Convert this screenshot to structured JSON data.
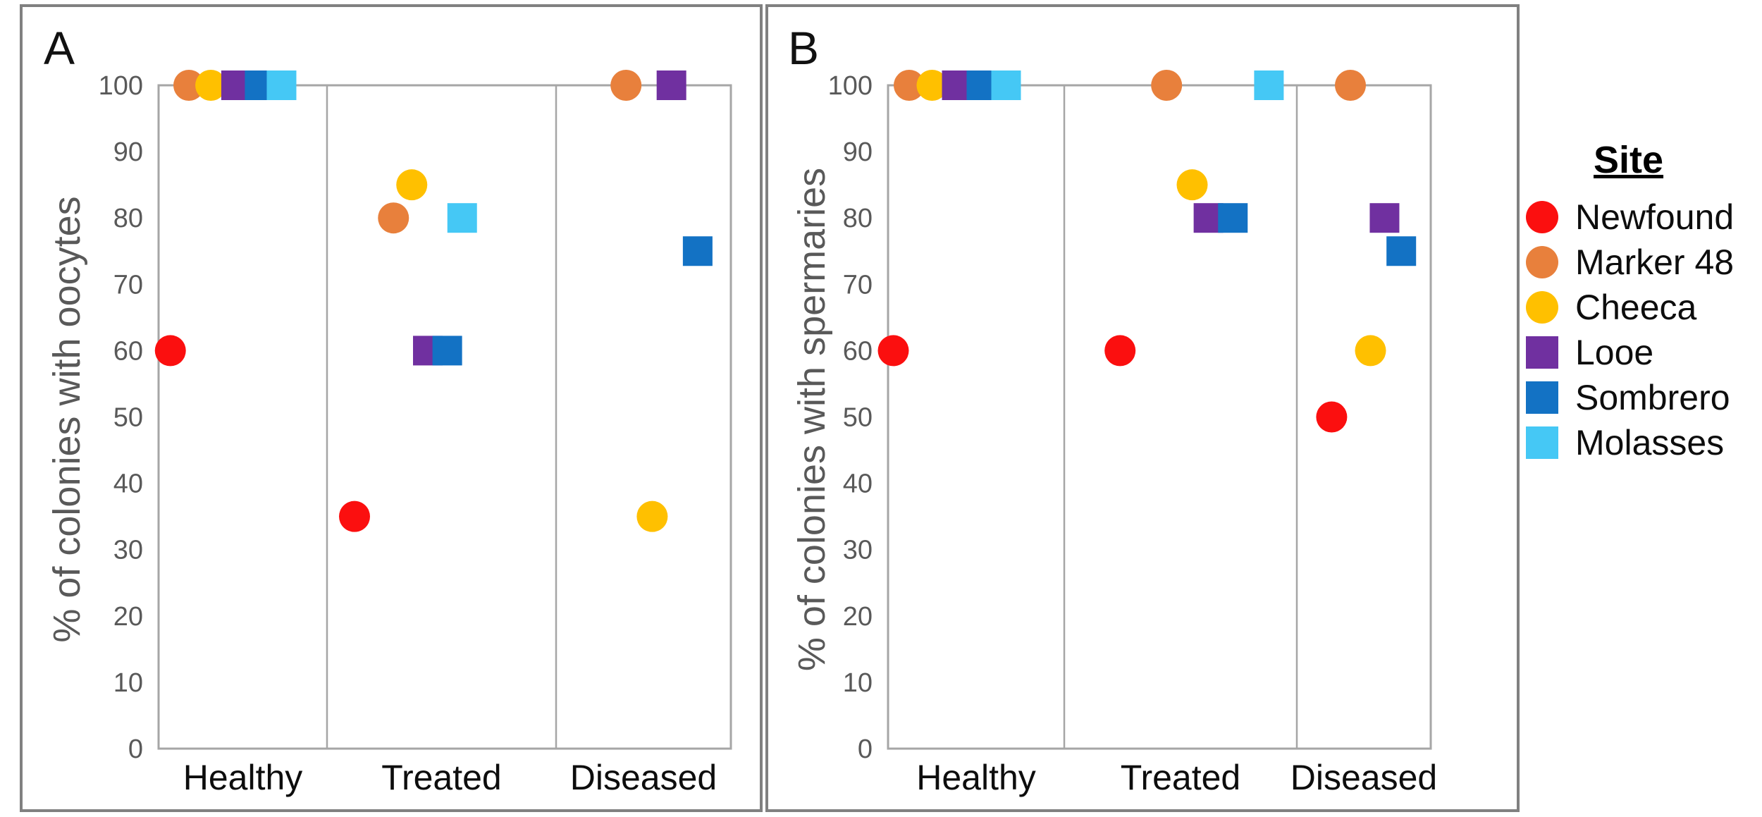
{
  "figure": {
    "colors": {
      "axis_text": "#595959",
      "plot_frame": "#a6a6a6",
      "panel_border": "#808080",
      "category_text": "#0d0d0d"
    }
  },
  "sites": {
    "Newfound": {
      "marker": "circle",
      "color": "#fb0f0f"
    },
    "Marker 48": {
      "marker": "circle",
      "color": "#e8803c"
    },
    "Cheeca": {
      "marker": "circle",
      "color": "#ffc000"
    },
    "Looe": {
      "marker": "square",
      "color": "#7030a0"
    },
    "Sombrero": {
      "marker": "square",
      "color": "#1372c4"
    },
    "Molasses": {
      "marker": "square",
      "color": "#45c8f5"
    }
  },
  "legend": {
    "title": "Site",
    "items": [
      {
        "label": "Newfound",
        "marker": "circle",
        "color": "#fb0f0f"
      },
      {
        "label": "Marker 48",
        "marker": "circle",
        "color": "#e8803c"
      },
      {
        "label": "Cheeca",
        "marker": "circle",
        "color": "#ffc000"
      },
      {
        "label": "Looe",
        "marker": "square",
        "color": "#7030a0"
      },
      {
        "label": "Sombrero",
        "marker": "square",
        "color": "#1372c4"
      },
      {
        "label": "Molasses",
        "marker": "square",
        "color": "#45c8f5"
      }
    ]
  },
  "chart_data": [
    {
      "type": "scatter",
      "panel_letter": "A",
      "ylabel": "% of colonies with oocytes",
      "xlabel": "",
      "categories": [
        "Healthy",
        "Treated",
        "Diseased"
      ],
      "ylim": [
        0,
        100
      ],
      "y_ticks": [
        0,
        10,
        20,
        30,
        40,
        50,
        60,
        70,
        80,
        90,
        100
      ],
      "grid": false,
      "legend_position": "outside-right",
      "points": [
        {
          "site": "Newfound",
          "category": "Healthy",
          "value": 60,
          "x_frac": 0.07
        },
        {
          "site": "Marker 48",
          "category": "Healthy",
          "value": 100,
          "x_frac": 0.18
        },
        {
          "site": "Cheeca",
          "category": "Healthy",
          "value": 100,
          "x_frac": 0.31
        },
        {
          "site": "Looe",
          "category": "Healthy",
          "value": 100,
          "x_frac": 0.46
        },
        {
          "site": "Sombrero",
          "category": "Healthy",
          "value": 100,
          "x_frac": 0.6
        },
        {
          "site": "Molasses",
          "category": "Healthy",
          "value": 100,
          "x_frac": 0.73
        },
        {
          "site": "Newfound",
          "category": "Treated",
          "value": 35,
          "x_frac": 0.12
        },
        {
          "site": "Marker 48",
          "category": "Treated",
          "value": 80,
          "x_frac": 0.29
        },
        {
          "site": "Cheeca",
          "category": "Treated",
          "value": 85,
          "x_frac": 0.37
        },
        {
          "site": "Looe",
          "category": "Treated",
          "value": 60,
          "x_frac": 0.44
        },
        {
          "site": "Sombrero",
          "category": "Treated",
          "value": 60,
          "x_frac": 0.525
        },
        {
          "site": "Molasses",
          "category": "Treated",
          "value": 80,
          "x_frac": 0.59
        },
        {
          "site": "Marker 48",
          "category": "Diseased",
          "value": 100,
          "x_frac": 0.4
        },
        {
          "site": "Looe",
          "category": "Diseased",
          "value": 100,
          "x_frac": 0.66
        },
        {
          "site": "Sombrero",
          "category": "Diseased",
          "value": 75,
          "x_frac": 0.81
        },
        {
          "site": "Cheeca",
          "category": "Diseased",
          "value": 35,
          "x_frac": 0.55
        }
      ]
    },
    {
      "type": "scatter",
      "panel_letter": "B",
      "ylabel": "% of colonies with spermaries",
      "xlabel": "",
      "categories": [
        "Healthy",
        "Treated",
        "Diseased"
      ],
      "ylim": [
        0,
        100
      ],
      "y_ticks": [
        0,
        10,
        20,
        30,
        40,
        50,
        60,
        70,
        80,
        90,
        100
      ],
      "grid": false,
      "legend_position": "outside-right",
      "points": [
        {
          "site": "Newfound",
          "category": "Healthy",
          "value": 60,
          "x_frac": 0.03
        },
        {
          "site": "Marker 48",
          "category": "Healthy",
          "value": 100,
          "x_frac": 0.12
        },
        {
          "site": "Cheeca",
          "category": "Healthy",
          "value": 100,
          "x_frac": 0.25
        },
        {
          "site": "Looe",
          "category": "Healthy",
          "value": 100,
          "x_frac": 0.39
        },
        {
          "site": "Sombrero",
          "category": "Healthy",
          "value": 100,
          "x_frac": 0.53
        },
        {
          "site": "Molasses",
          "category": "Healthy",
          "value": 100,
          "x_frac": 0.67
        },
        {
          "site": "Newfound",
          "category": "Treated",
          "value": 60,
          "x_frac": 0.24
        },
        {
          "site": "Marker 48",
          "category": "Treated",
          "value": 100,
          "x_frac": 0.44
        },
        {
          "site": "Cheeca",
          "category": "Treated",
          "value": 85,
          "x_frac": 0.55
        },
        {
          "site": "Looe",
          "category": "Treated",
          "value": 80,
          "x_frac": 0.62
        },
        {
          "site": "Sombrero",
          "category": "Treated",
          "value": 80,
          "x_frac": 0.725
        },
        {
          "site": "Molasses",
          "category": "Treated",
          "value": 100,
          "x_frac": 0.88
        },
        {
          "site": "Newfound",
          "category": "Diseased",
          "value": 50,
          "x_frac": 0.26
        },
        {
          "site": "Marker 48",
          "category": "Diseased",
          "value": 100,
          "x_frac": 0.4
        },
        {
          "site": "Cheeca",
          "category": "Diseased",
          "value": 60,
          "x_frac": 0.55
        },
        {
          "site": "Looe",
          "category": "Diseased",
          "value": 80,
          "x_frac": 0.655
        },
        {
          "site": "Sombrero",
          "category": "Diseased",
          "value": 75,
          "x_frac": 0.78
        }
      ]
    }
  ]
}
